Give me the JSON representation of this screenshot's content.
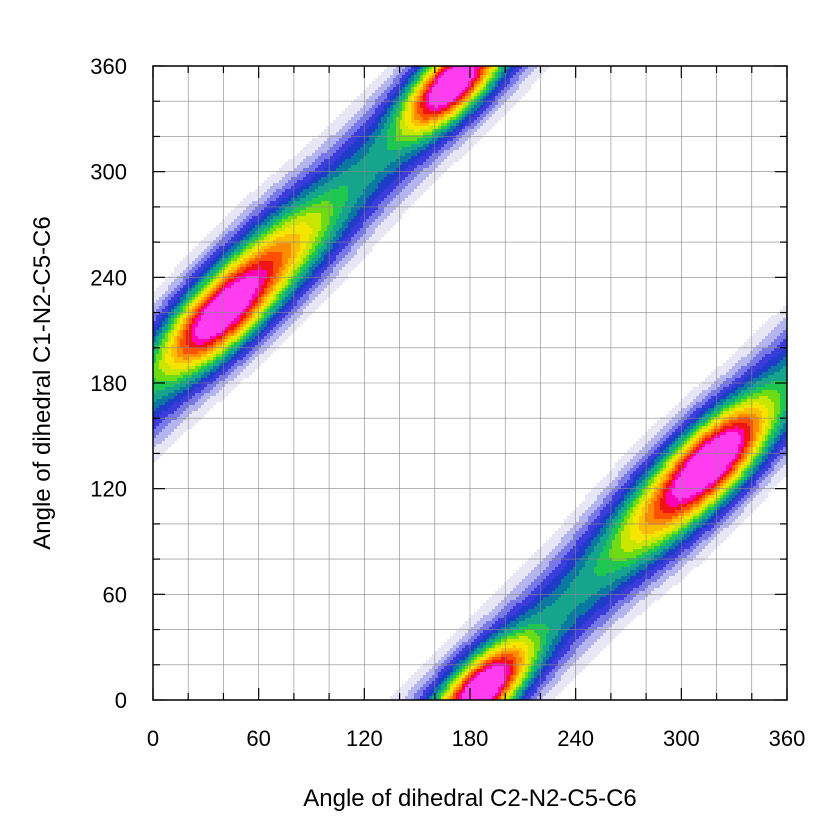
{
  "chart_data": {
    "type": "heatmap",
    "subtype": "filled-contour",
    "title": "",
    "xlabel": "Angle of dihedral C2-N2-C5-C6",
    "ylabel": "Angle of dihedral C1-N2-C5-C6",
    "xlim": [
      0,
      360
    ],
    "ylim": [
      0,
      360
    ],
    "xticks": [
      0,
      60,
      120,
      180,
      240,
      300,
      360
    ],
    "yticks": [
      0,
      60,
      120,
      180,
      240,
      300,
      360
    ],
    "minor_tick_step": 20,
    "grid": true,
    "periodic": true,
    "colormap": [
      "#ffffff",
      "#e6e6f5",
      "#b4b4ee",
      "#7878e6",
      "#3c3cdc",
      "#1e3cc8",
      "#0a78a0",
      "#14a58c",
      "#1ec850",
      "#6edc14",
      "#c8e600",
      "#f5e600",
      "#ffbe00",
      "#ff8c00",
      "#ff5000",
      "#f01414",
      "#ff00b4",
      "#ff3cf0"
    ],
    "ridges": [
      {
        "y_offset": 180,
        "description": "upper-left band along y = x + 180"
      },
      {
        "y_offset": -180,
        "description": "lower-right band along y = x - 180"
      }
    ],
    "peaks": [
      {
        "x": 37,
        "y": 218,
        "level": "red"
      },
      {
        "x": 170,
        "y": 350,
        "level": "magenta"
      },
      {
        "x": 187,
        "y": 6,
        "level": "magenta"
      },
      {
        "x": 320,
        "y": 138,
        "level": "red"
      },
      {
        "x": 105,
        "y": 284,
        "level": "teal"
      },
      {
        "x": 250,
        "y": 75,
        "level": "teal"
      }
    ]
  }
}
